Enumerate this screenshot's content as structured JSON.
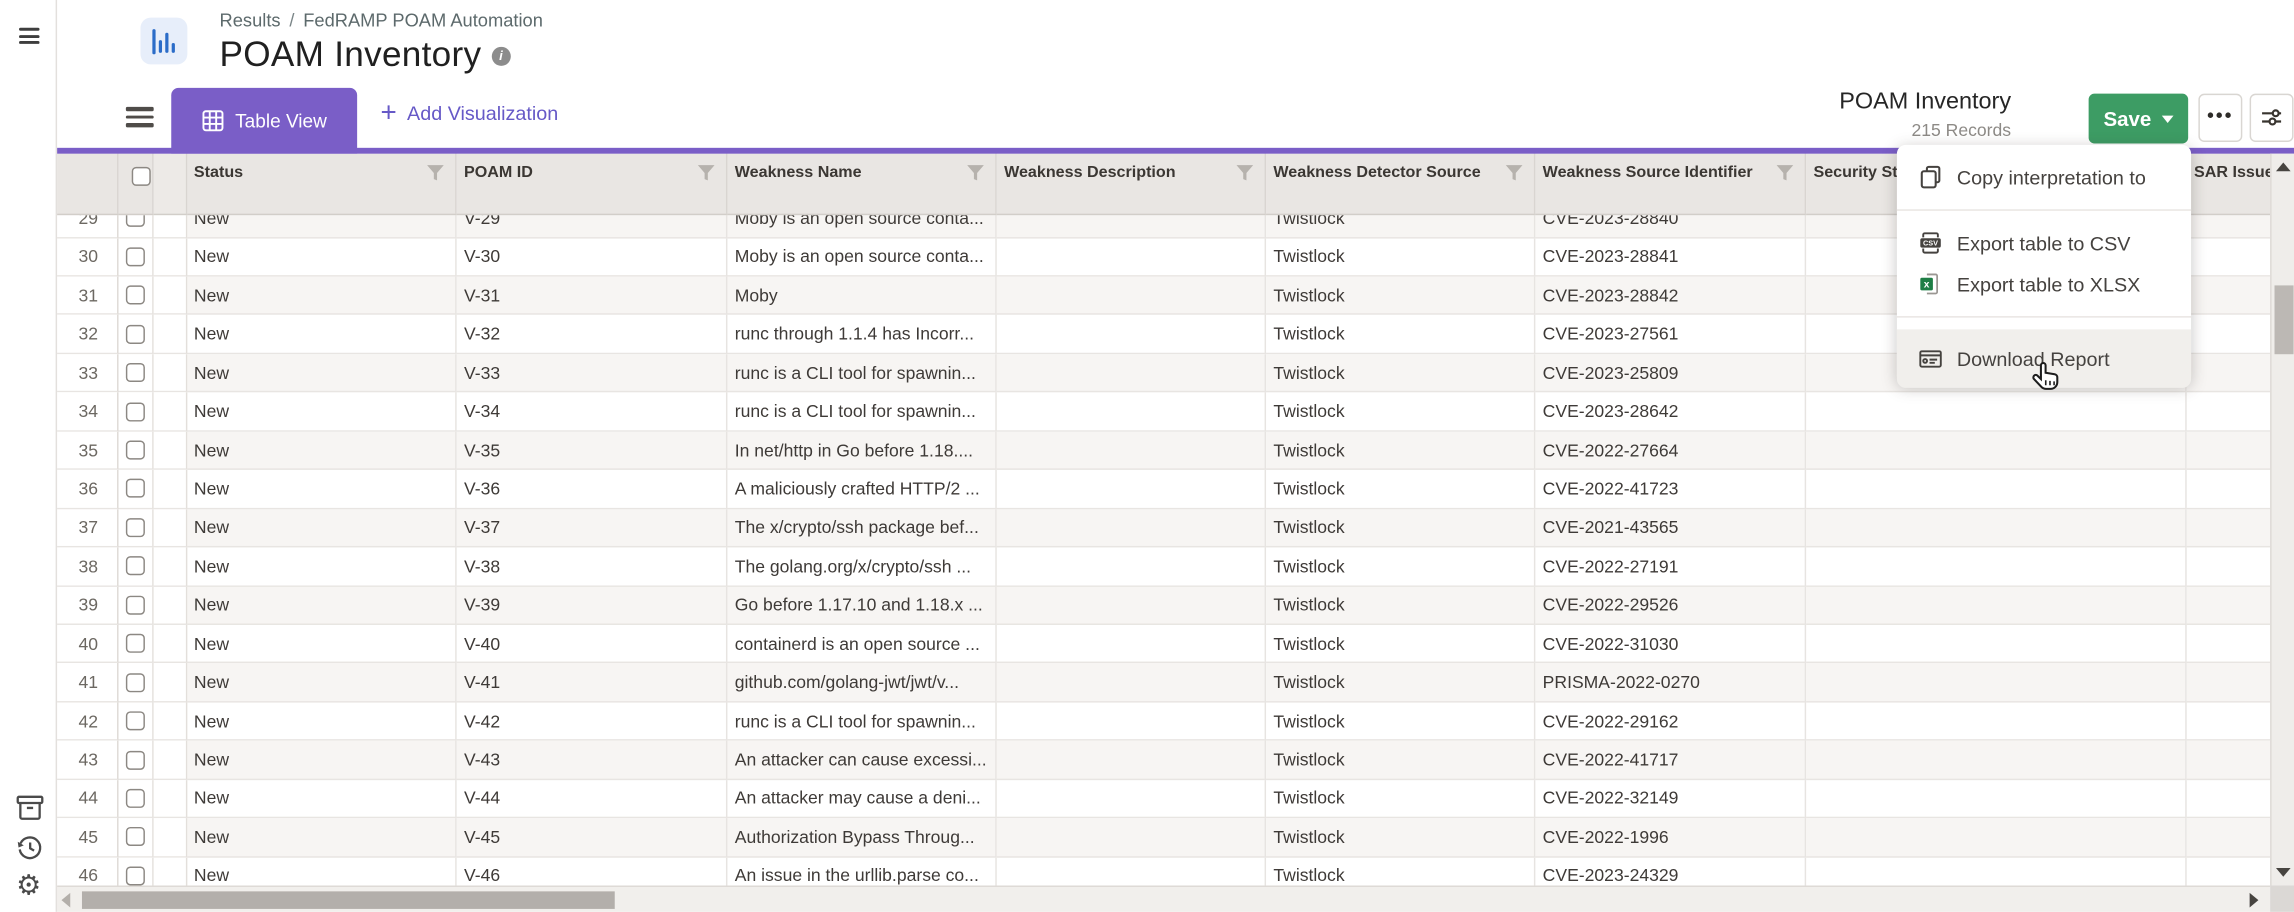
{
  "colors": {
    "accent_purple": "#7a5ec7",
    "accent_green": "#3d9c64",
    "link_purple": "#6659c7",
    "header_bg": "#e9e6e3",
    "row_alt_bg": "#f7f5f3"
  },
  "sidebar": {
    "icons": [
      "menu-icon",
      "archive-icon",
      "history-icon",
      "gear-icon"
    ]
  },
  "header": {
    "breadcrumb": {
      "section": "Results",
      "separator": "/",
      "page": "FedRAMP POAM Automation"
    },
    "title": "POAM Inventory"
  },
  "toolbar": {
    "tab_label": "Table View",
    "plus": "+",
    "add_visualization": "Add Visualization",
    "result_title": "POAM Inventory",
    "record_count": "215 Records",
    "save_label": "Save",
    "more_label": "•••"
  },
  "menu": {
    "items": [
      {
        "label": "Copy interpretation to",
        "icon": "copy-icon",
        "divider_after": true,
        "hovered": false
      },
      {
        "label": "Export table to CSV",
        "icon": "csv-icon",
        "divider_after": false,
        "hovered": false
      },
      {
        "label": "Export table to XLSX",
        "icon": "xlsx-icon",
        "divider_after": true,
        "hovered": false
      },
      {
        "label": "Download Report",
        "icon": "report-icon",
        "divider_after": false,
        "hovered": true
      }
    ]
  },
  "table": {
    "columns": [
      {
        "key": "rownum",
        "label": "",
        "filter": false
      },
      {
        "key": "select",
        "label": "",
        "filter": false,
        "checkbox": true
      },
      {
        "key": "spacer",
        "label": "",
        "filter": false
      },
      {
        "key": "status",
        "label": "Status",
        "filter": true
      },
      {
        "key": "poam_id",
        "label": "POAM ID",
        "filter": true
      },
      {
        "key": "weakness_name",
        "label": "Weakness Name",
        "filter": true
      },
      {
        "key": "weakness_description",
        "label": "Weakness Description",
        "filter": true
      },
      {
        "key": "detector",
        "label": "Weakness Detector Source",
        "filter": true
      },
      {
        "key": "identifier",
        "label": "Weakness Source Identifier",
        "filter": true
      },
      {
        "key": "security_status",
        "label": "Security Status",
        "filter": true
      },
      {
        "key": "sar_issue",
        "label": "SAR Issue",
        "filter": false
      }
    ],
    "rows": [
      {
        "num": 29,
        "status": "New",
        "poam_id": "V-29",
        "weakness_name": "Moby is an open source conta...",
        "weakness_description": "",
        "detector": "Twistlock",
        "identifier": "CVE-2023-28840",
        "security_status": "",
        "sar_issue": ""
      },
      {
        "num": 30,
        "status": "New",
        "poam_id": "V-30",
        "weakness_name": "Moby is an open source conta...",
        "weakness_description": "",
        "detector": "Twistlock",
        "identifier": "CVE-2023-28841",
        "security_status": "",
        "sar_issue": ""
      },
      {
        "num": 31,
        "status": "New",
        "poam_id": "V-31",
        "weakness_name": "Moby",
        "weakness_description": "",
        "detector": "Twistlock",
        "identifier": "CVE-2023-28842",
        "security_status": "",
        "sar_issue": ""
      },
      {
        "num": 32,
        "status": "New",
        "poam_id": "V-32",
        "weakness_name": "runc through 1.1.4 has Incorr...",
        "weakness_description": "",
        "detector": "Twistlock",
        "identifier": "CVE-2023-27561",
        "security_status": "",
        "sar_issue": ""
      },
      {
        "num": 33,
        "status": "New",
        "poam_id": "V-33",
        "weakness_name": "runc is a CLI tool for spawnin...",
        "weakness_description": "",
        "detector": "Twistlock",
        "identifier": "CVE-2023-25809",
        "security_status": "",
        "sar_issue": ""
      },
      {
        "num": 34,
        "status": "New",
        "poam_id": "V-34",
        "weakness_name": "runc is a CLI tool for spawnin...",
        "weakness_description": "",
        "detector": "Twistlock",
        "identifier": "CVE-2023-28642",
        "security_status": "",
        "sar_issue": ""
      },
      {
        "num": 35,
        "status": "New",
        "poam_id": "V-35",
        "weakness_name": "In net/http in Go before 1.18....",
        "weakness_description": "",
        "detector": "Twistlock",
        "identifier": "CVE-2022-27664",
        "security_status": "",
        "sar_issue": ""
      },
      {
        "num": 36,
        "status": "New",
        "poam_id": "V-36",
        "weakness_name": "A maliciously crafted HTTP/2 ...",
        "weakness_description": "",
        "detector": "Twistlock",
        "identifier": "CVE-2022-41723",
        "security_status": "",
        "sar_issue": ""
      },
      {
        "num": 37,
        "status": "New",
        "poam_id": "V-37",
        "weakness_name": "The x/crypto/ssh package bef...",
        "weakness_description": "",
        "detector": "Twistlock",
        "identifier": "CVE-2021-43565",
        "security_status": "",
        "sar_issue": ""
      },
      {
        "num": 38,
        "status": "New",
        "poam_id": "V-38",
        "weakness_name": "The golang.org/x/crypto/ssh ...",
        "weakness_description": "",
        "detector": "Twistlock",
        "identifier": "CVE-2022-27191",
        "security_status": "",
        "sar_issue": ""
      },
      {
        "num": 39,
        "status": "New",
        "poam_id": "V-39",
        "weakness_name": "Go before 1.17.10 and 1.18.x ...",
        "weakness_description": "",
        "detector": "Twistlock",
        "identifier": "CVE-2022-29526",
        "security_status": "",
        "sar_issue": ""
      },
      {
        "num": 40,
        "status": "New",
        "poam_id": "V-40",
        "weakness_name": "containerd is an open source ...",
        "weakness_description": "",
        "detector": "Twistlock",
        "identifier": "CVE-2022-31030",
        "security_status": "",
        "sar_issue": ""
      },
      {
        "num": 41,
        "status": "New",
        "poam_id": "V-41",
        "weakness_name": "github.com/golang-jwt/jwt/v...",
        "weakness_description": "",
        "detector": "Twistlock",
        "identifier": "PRISMA-2022-0270",
        "security_status": "",
        "sar_issue": ""
      },
      {
        "num": 42,
        "status": "New",
        "poam_id": "V-42",
        "weakness_name": "runc is a CLI tool for spawnin...",
        "weakness_description": "",
        "detector": "Twistlock",
        "identifier": "CVE-2022-29162",
        "security_status": "",
        "sar_issue": ""
      },
      {
        "num": 43,
        "status": "New",
        "poam_id": "V-43",
        "weakness_name": "An attacker can cause excessi...",
        "weakness_description": "",
        "detector": "Twistlock",
        "identifier": "CVE-2022-41717",
        "security_status": "",
        "sar_issue": ""
      },
      {
        "num": 44,
        "status": "New",
        "poam_id": "V-44",
        "weakness_name": "An attacker may cause a deni...",
        "weakness_description": "",
        "detector": "Twistlock",
        "identifier": "CVE-2022-32149",
        "security_status": "",
        "sar_issue": ""
      },
      {
        "num": 45,
        "status": "New",
        "poam_id": "V-45",
        "weakness_name": "Authorization Bypass Throug...",
        "weakness_description": "",
        "detector": "Twistlock",
        "identifier": "CVE-2022-1996",
        "security_status": "",
        "sar_issue": ""
      },
      {
        "num": 46,
        "status": "New",
        "poam_id": "V-46",
        "weakness_name": "An issue in the urllib.parse co...",
        "weakness_description": "",
        "detector": "Twistlock",
        "identifier": "CVE-2023-24329",
        "security_status": "",
        "sar_issue": ""
      }
    ]
  }
}
